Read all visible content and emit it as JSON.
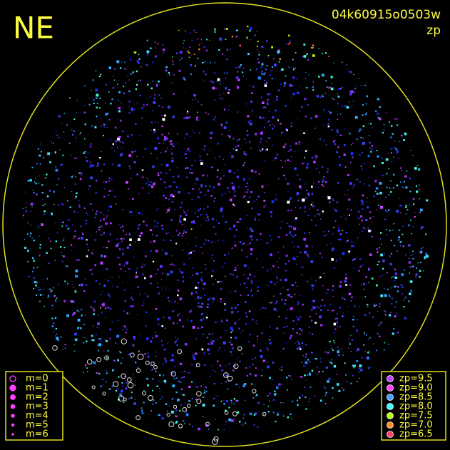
{
  "corner": "NE",
  "frame_id": "04k60915o0503w",
  "subtitle": "zp",
  "magnitude_legend": [
    "m=0",
    "m=1",
    "m=2",
    "m=3",
    "m=4",
    "m=5",
    "m=6"
  ],
  "zp_legend": [
    {
      "label": "zp=9.5",
      "color": "#c040ff"
    },
    {
      "label": "zp=9.0",
      "color": "#ff40ff"
    },
    {
      "label": "zp=8.5",
      "color": "#40a0ff"
    },
    {
      "label": "zp=8.0",
      "color": "#40ffff"
    },
    {
      "label": "zp=7.5",
      "color": "#c0ff00"
    },
    {
      "label": "zp=7.0",
      "color": "#ff9020"
    },
    {
      "label": "zp=6.5",
      "color": "#ff4060"
    }
  ]
}
